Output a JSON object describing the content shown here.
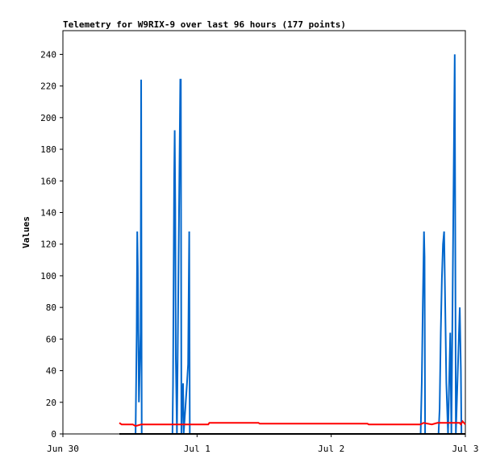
{
  "chart_data": {
    "type": "line",
    "title": "Telemetry for W9RIX-9 over last 96 hours (177 points)",
    "y_label": "Values",
    "xlim": [
      0,
      72
    ],
    "xticks": [
      {
        "value": 0,
        "label": "Jun 30"
      },
      {
        "value": 24,
        "label": "Jul 1"
      },
      {
        "value": 48,
        "label": "Jul 2"
      },
      {
        "value": 72,
        "label": "Jul 3"
      }
    ],
    "ylim": [
      0,
      255
    ],
    "yticks": [
      0,
      20,
      40,
      60,
      80,
      100,
      120,
      140,
      160,
      180,
      200,
      220,
      240
    ],
    "series": [
      {
        "color": "#0066cc",
        "x": [
          10.1,
          13.0,
          13.2,
          13.3,
          13.4,
          13.5,
          13.6,
          13.9,
          14.0,
          14.1,
          19.6,
          19.7,
          19.8,
          19.9,
          20.0,
          20.1,
          20.2,
          20.4,
          21.0,
          21.1,
          21.2,
          21.3,
          21.5,
          21.6,
          21.9,
          22.2,
          22.4,
          22.5,
          22.6,
          22.7,
          64.0,
          64.2,
          64.4,
          64.6,
          64.7,
          64.8,
          67.2,
          67.4,
          67.6,
          67.8,
          68.0,
          68.2,
          68.4,
          68.6,
          68.9,
          69.3,
          69.5,
          69.8,
          70.1,
          70.3,
          71.0,
          71.2,
          71.3
        ],
        "values": [
          0,
          0,
          64,
          128,
          106,
          64,
          20,
          64,
          224,
          0,
          0,
          32,
          96,
          160,
          192,
          144,
          48,
          0,
          224,
          224,
          0,
          16,
          32,
          0,
          16,
          32,
          44,
          88,
          128,
          0,
          0,
          32,
          84,
          128,
          112,
          0,
          0,
          16,
          64,
          98,
          120,
          128,
          80,
          32,
          0,
          64,
          0,
          120,
          240,
          0,
          80,
          40,
          0
        ]
      },
      {
        "color": "#ff0000",
        "x": [
          10.1,
          10.5,
          12.5,
          13.0,
          14.0,
          26.0,
          26.2,
          35.0,
          35.2,
          54.5,
          54.7,
          64.0,
          64.5,
          66.0,
          67.0,
          71.0,
          71.2,
          71.5,
          72.0
        ],
        "values": [
          7,
          6,
          6,
          5,
          6,
          6,
          7,
          7,
          6.5,
          6.5,
          6,
          6,
          7,
          6,
          7,
          7,
          6,
          8,
          6
        ]
      },
      {
        "color": "#000000",
        "x": [
          10.1,
          72.0
        ],
        "values": [
          0,
          0
        ]
      }
    ]
  }
}
